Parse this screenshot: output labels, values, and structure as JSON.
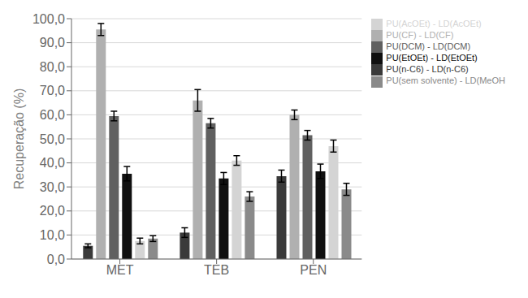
{
  "chart_data": {
    "type": "bar",
    "categories": [
      "MET",
      "TEB",
      "PEN"
    ],
    "series": [
      {
        "name": "PU(n-C6) - LD(n-C6)",
        "color": "#3a3a3a",
        "values": [
          5.5,
          11.0,
          34.5
        ],
        "errors": [
          0.8,
          2.0,
          2.5
        ]
      },
      {
        "name": "PU(CF) - LD(CF)",
        "color": "#b0b0b0",
        "values": [
          95.5,
          66.0,
          60.0
        ],
        "errors": [
          2.5,
          4.5,
          2.0
        ]
      },
      {
        "name": "PU(DCM) - LD(DCM)",
        "color": "#606060",
        "values": [
          59.5,
          56.5,
          51.5
        ],
        "errors": [
          2.0,
          2.0,
          2.0
        ]
      },
      {
        "name": "PU(EtOEt) - LD(EtOEt)",
        "color": "#101010",
        "values": [
          35.5,
          33.5,
          36.5
        ],
        "errors": [
          3.0,
          2.5,
          3.0
        ]
      },
      {
        "name": "PU(AcOEt) - LD(AcOEt)",
        "color": "#d4d4d4",
        "values": [
          7.5,
          41.0,
          47.0
        ],
        "errors": [
          1.2,
          2.0,
          2.5
        ]
      },
      {
        "name": "PU(sem solvente) - LD(MeOH",
        "color": "#8a8a8a",
        "values": [
          8.5,
          26.0,
          29.0
        ],
        "errors": [
          1.2,
          2.0,
          2.5
        ]
      }
    ],
    "ylabel": "Recuperação (%)",
    "ylim": [
      0,
      100
    ],
    "yticks": [
      {
        "value": 0,
        "label": "0,0"
      },
      {
        "value": 10,
        "label": "10,0"
      },
      {
        "value": 20,
        "label": "20,0"
      },
      {
        "value": 30,
        "label": "30,0"
      },
      {
        "value": 40,
        "label": "40,0"
      },
      {
        "value": 50,
        "label": "50,0"
      },
      {
        "value": 60,
        "label": "60,0"
      },
      {
        "value": 70,
        "label": "70,0"
      },
      {
        "value": 80,
        "label": "80,0"
      },
      {
        "value": 90,
        "label": "90,0"
      },
      {
        "value": 100,
        "label": "100,0"
      }
    ],
    "grid": true,
    "legend": "upper right"
  }
}
